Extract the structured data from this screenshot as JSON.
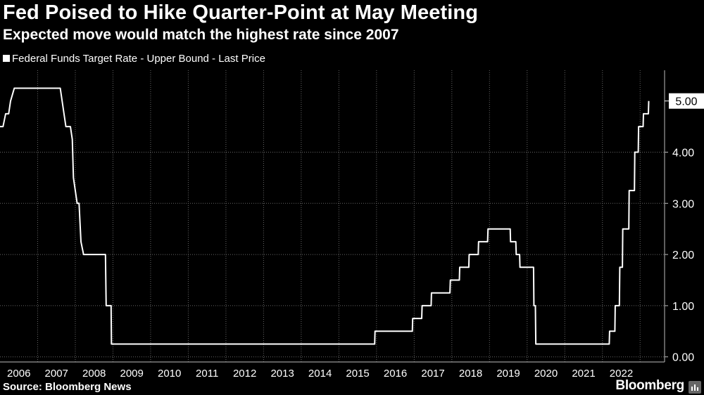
{
  "title": "Fed Poised to Hike Quarter-Point at May Meeting",
  "subtitle": "Expected move would match the highest rate since 2007",
  "legend": {
    "label": "Federal Funds Target Rate - Upper Bound - Last Price"
  },
  "source": "Source: Bloomberg News",
  "brand": "Bloomberg",
  "colors": {
    "background": "#000000",
    "line": "#ffffff",
    "grid": "#666666"
  },
  "chart_data": {
    "type": "line",
    "title": "Fed Poised to Hike Quarter-Point at May Meeting",
    "subtitle": "Expected move would match the highest rate since 2007",
    "xlabel": "",
    "ylabel": "",
    "x_tick_labels": [
      "2006",
      "2007",
      "2008",
      "2009",
      "2010",
      "2011",
      "2012",
      "2013",
      "2014",
      "2015",
      "2016",
      "2017",
      "2018",
      "2019",
      "2020",
      "2021",
      "2022"
    ],
    "y_tick_labels": [
      "0.00",
      "1.00",
      "2.00",
      "3.00",
      "4.00"
    ],
    "y_ticks": [
      0,
      1,
      2,
      3,
      4
    ],
    "xlim": [
      2006.0,
      2023.65
    ],
    "ylim": [
      -0.1,
      5.6
    ],
    "grid": true,
    "legend_position": "top-left",
    "last_value_label": "5.00",
    "series": [
      {
        "name": "Federal Funds Target Rate - Upper Bound - Last Price",
        "x": [
          2006.0,
          2006.08,
          2006.15,
          2006.23,
          2006.28,
          2006.38,
          2006.45,
          2007.6,
          2007.7,
          2007.75,
          2007.87,
          2007.92,
          2007.95,
          2008.05,
          2008.1,
          2008.15,
          2008.22,
          2008.3,
          2008.33,
          2008.8,
          2008.82,
          2008.95,
          2008.96,
          2015.95,
          2015.96,
          2016.95,
          2016.96,
          2017.2,
          2017.21,
          2017.45,
          2017.46,
          2017.95,
          2017.96,
          2018.2,
          2018.21,
          2018.45,
          2018.46,
          2018.7,
          2018.71,
          2018.95,
          2018.96,
          2019.55,
          2019.56,
          2019.7,
          2019.71,
          2019.8,
          2019.81,
          2020.17,
          2020.18,
          2020.22,
          2020.23,
          2022.18,
          2022.19,
          2022.33,
          2022.34,
          2022.45,
          2022.46,
          2022.53,
          2022.54,
          2022.7,
          2022.71,
          2022.85,
          2022.86,
          2022.95,
          2022.96,
          2023.08,
          2023.09,
          2023.22,
          2023.23
        ],
        "y": [
          4.5,
          4.5,
          4.75,
          4.75,
          5.0,
          5.25,
          5.25,
          5.25,
          4.75,
          4.5,
          4.5,
          4.25,
          3.5,
          3.0,
          3.0,
          2.25,
          2.0,
          2.0,
          2.0,
          2.0,
          1.0,
          1.0,
          0.25,
          0.25,
          0.5,
          0.5,
          0.75,
          0.75,
          1.0,
          1.0,
          1.25,
          1.25,
          1.5,
          1.5,
          1.75,
          1.75,
          2.0,
          2.0,
          2.25,
          2.25,
          2.5,
          2.5,
          2.25,
          2.25,
          2.0,
          2.0,
          1.75,
          1.75,
          1.0,
          1.0,
          0.25,
          0.25,
          0.5,
          0.5,
          1.0,
          1.0,
          1.75,
          1.75,
          2.5,
          2.5,
          3.25,
          3.25,
          4.0,
          4.0,
          4.5,
          4.5,
          4.75,
          4.75,
          5.0
        ]
      }
    ]
  }
}
